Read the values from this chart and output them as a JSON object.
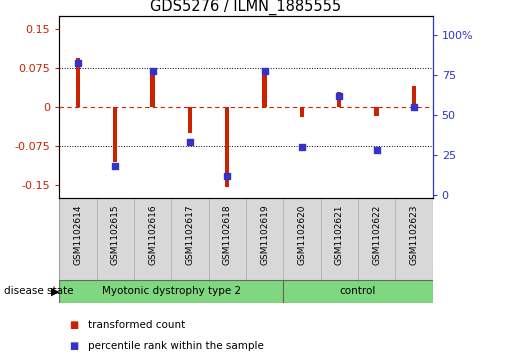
{
  "title": "GDS5276 / ILMN_1885555",
  "samples": [
    "GSM1102614",
    "GSM1102615",
    "GSM1102616",
    "GSM1102617",
    "GSM1102618",
    "GSM1102619",
    "GSM1102620",
    "GSM1102621",
    "GSM1102622",
    "GSM1102623"
  ],
  "red_values": [
    0.095,
    -0.105,
    0.07,
    -0.05,
    -0.155,
    0.075,
    -0.02,
    0.03,
    -0.018,
    0.04
  ],
  "blue_values": [
    83,
    18,
    78,
    33,
    12,
    78,
    30,
    62,
    28,
    55
  ],
  "group1_label": "Myotonic dystrophy type 2",
  "group1_count": 6,
  "group2_label": "control",
  "group2_count": 4,
  "group_color": "#7FD87F",
  "ylim_left": [
    -0.175,
    0.175
  ],
  "ylim_right": [
    -1.75,
    112
  ],
  "yticks_left": [
    -0.15,
    -0.075,
    0,
    0.075,
    0.15
  ],
  "yticks_right": [
    0,
    25,
    50,
    75,
    100
  ],
  "ytick_labels_left": [
    "-0.15",
    "-0.075",
    "0",
    "0.075",
    "0.15"
  ],
  "ytick_labels_right": [
    "0",
    "25",
    "50",
    "75",
    "100%"
  ],
  "red_color": "#cc2200",
  "blue_color": "#3333cc",
  "hline_red": 0.0,
  "hlines_dotted": [
    0.075,
    -0.075
  ],
  "bar_width": 0.12,
  "dot_size": 25,
  "disease_state_label": "disease state",
  "legend_red": "transformed count",
  "legend_blue": "percentile rank within the sample",
  "bg_color": "#d8d8d8",
  "plot_bg": "#ffffff"
}
